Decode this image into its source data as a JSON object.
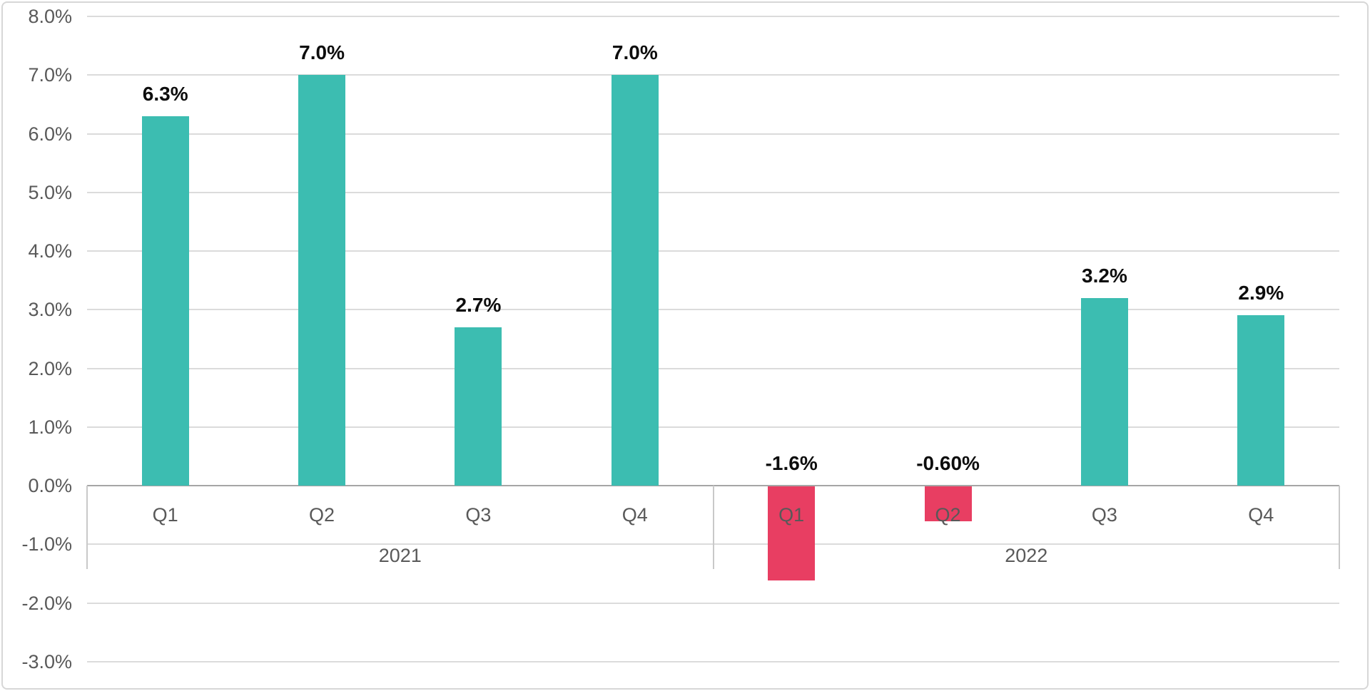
{
  "chart_data": {
    "type": "bar",
    "title": "",
    "xlabel": "",
    "ylabel": "",
    "legend": "none",
    "grid": "horizontal",
    "unit": "%",
    "groups": [
      {
        "label": "2021",
        "span": 4
      },
      {
        "label": "2022",
        "span": 4
      }
    ],
    "categories": [
      "Q1",
      "Q2",
      "Q3",
      "Q4",
      "Q1",
      "Q2",
      "Q3",
      "Q4"
    ],
    "values": [
      6.3,
      7.0,
      2.7,
      7.0,
      -1.6,
      -0.6,
      3.2,
      2.9
    ],
    "value_labels": [
      "6.3%",
      "7.0%",
      "2.7%",
      "7.0%",
      "-1.6%",
      "-0.60%",
      "3.2%",
      "2.9%"
    ],
    "y_axis": {
      "min": -3.0,
      "max": 8.0,
      "step": 1.0,
      "ticks": [
        {
          "value": 8,
          "label": "8.0%"
        },
        {
          "value": 7,
          "label": "7.0%"
        },
        {
          "value": 6,
          "label": "6.0%"
        },
        {
          "value": 5,
          "label": "5.0%"
        },
        {
          "value": 4,
          "label": "4.0%"
        },
        {
          "value": 3,
          "label": "3.0%"
        },
        {
          "value": 2,
          "label": "2.0%"
        },
        {
          "value": 1,
          "label": "1.0%"
        },
        {
          "value": 0,
          "label": "0.0%"
        },
        {
          "value": -1,
          "label": "-1.0%"
        },
        {
          "value": -2,
          "label": "-2.0%"
        },
        {
          "value": -3,
          "label": "-3.0%"
        }
      ]
    },
    "colors": {
      "positive": "#3CBDB1",
      "negative": "#E83E62",
      "gridline": "#DBDBDB",
      "zero_line": "#A6A6A6",
      "separator": "#C9C9C9",
      "tick_text": "#595959",
      "value_text": "#0D0D0D",
      "border": "#D7D7D7",
      "background": "#FFFFFF"
    }
  }
}
